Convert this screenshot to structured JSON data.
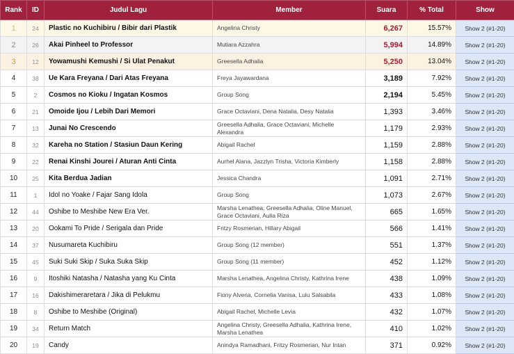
{
  "table": {
    "headers": {
      "rank": "Rank",
      "id": "ID",
      "title": "Judul Lagu",
      "member": "Member",
      "votes": "Suara",
      "pct": "% Total",
      "show": "Show"
    },
    "rows": [
      {
        "rank": "1",
        "id": "24",
        "title": "Plastic no Kuchibiru / Bibir dari Plastik",
        "member": "Angelina Christy",
        "votes": "6,267",
        "pct": "15.57%",
        "show": "Show 2 (#1-20)"
      },
      {
        "rank": "2",
        "id": "26",
        "title": "Akai Pinheel to Professor",
        "member": "Mutiara Azzahra",
        "votes": "5,994",
        "pct": "14.89%",
        "show": "Show 2 (#1-20)"
      },
      {
        "rank": "3",
        "id": "12",
        "title": "Yowamushi Kemushi / Si Ulat Penakut",
        "member": "Greesella Adhalia",
        "votes": "5,250",
        "pct": "13.04%",
        "show": "Show 2 (#1-20)"
      },
      {
        "rank": "4",
        "id": "38",
        "title": "Ue Kara Freyana / Dari Atas Freyana",
        "member": "Freya Jayawardana",
        "votes": "3,189",
        "pct": "7.92%",
        "show": "Show 2 (#1-20)"
      },
      {
        "rank": "5",
        "id": "2",
        "title": "Cosmos no Kioku / Ingatan Kosmos",
        "member": "Group Song",
        "votes": "2,194",
        "pct": "5.45%",
        "show": "Show 2 (#1-20)"
      },
      {
        "rank": "6",
        "id": "21",
        "title": "Omoide Ijou / Lebih Dari Memori",
        "member": "Grace Octaviani, Dena Natalia, Desy Natalia",
        "votes": "1,393",
        "pct": "3.46%",
        "show": "Show 2 (#1-20)"
      },
      {
        "rank": "7",
        "id": "13",
        "title": "Junai No Crescendo",
        "member": "Greesella Adhalia, Grace Octaviani, Michelle Alexandra",
        "votes": "1,179",
        "pct": "2.93%",
        "show": "Show 2 (#1-20)"
      },
      {
        "rank": "8",
        "id": "32",
        "title": "Kareha no Station / Stasiun Daun Kering",
        "member": "Abigail Rachel",
        "votes": "1,159",
        "pct": "2.88%",
        "show": "Show 2 (#1-20)"
      },
      {
        "rank": "9",
        "id": "22",
        "title": "Renai Kinshi Jourei / Aturan Anti Cinta",
        "member": "Aurhel Alana, Jazzlyn Trisha, Victoria Kimberly",
        "votes": "1,158",
        "pct": "2.88%",
        "show": "Show 2 (#1-20)"
      },
      {
        "rank": "10",
        "id": "25",
        "title": "Kita Berdua Jadian",
        "member": "Jessica Chandra",
        "votes": "1,091",
        "pct": "2.71%",
        "show": "Show 2 (#1-20)"
      },
      {
        "rank": "11",
        "id": "1",
        "title": "Idol no Yoake / Fajar Sang Idola",
        "member": "Group Song",
        "votes": "1,073",
        "pct": "2.67%",
        "show": "Show 2 (#1-20)"
      },
      {
        "rank": "12",
        "id": "44",
        "title": "Oshibe to Meshibe New Era Ver.",
        "member": "Marsha Lenathea, Greesella Adhalia, Oline Manuel, Grace Octaviani, Aulia Riza",
        "votes": "665",
        "pct": "1.65%",
        "show": "Show 2 (#1-20)"
      },
      {
        "rank": "13",
        "id": "20",
        "title": "Ookami To Pride / Serigala dan Pride",
        "member": "Fritzy Rosmerian, Hillary Abigail",
        "votes": "566",
        "pct": "1.41%",
        "show": "Show 2 (#1-20)"
      },
      {
        "rank": "14",
        "id": "37",
        "title": "Nusumareta Kuchibiru",
        "member": "Group Song (12 member)",
        "votes": "551",
        "pct": "1.37%",
        "show": "Show 2 (#1-20)"
      },
      {
        "rank": "15",
        "id": "45",
        "title": "Suki Suki Skip / Suka Suka Skip",
        "member": "Group Song (11 member)",
        "votes": "452",
        "pct": "1.12%",
        "show": "Show 2 (#1-20)"
      },
      {
        "rank": "16",
        "id": "9",
        "title": "Itoshiki Natasha / Natasha yang Ku Cinta",
        "member": "Marsha Lenathea, Angelina Christy, Kathrina Irene",
        "votes": "438",
        "pct": "1.09%",
        "show": "Show 2 (#1-20)"
      },
      {
        "rank": "17",
        "id": "16",
        "title": "Dakishimeraretara / Jika di Pelukmu",
        "member": "Fiony Alveria, Cornelia Vanisa, Lulu Salsabila",
        "votes": "433",
        "pct": "1.08%",
        "show": "Show 2 (#1-20)"
      },
      {
        "rank": "18",
        "id": "8",
        "title": "Oshibe to Meshibe (Original)",
        "member": "Abigail Rachel, Michelle Levia",
        "votes": "432",
        "pct": "1.07%",
        "show": "Show 2 (#1-20)"
      },
      {
        "rank": "19",
        "id": "34",
        "title": "Return Match",
        "member": "Angelina Christy, Greesella Adhalia, Kathrina Irene, Marsha Lenathea",
        "votes": "410",
        "pct": "1.02%",
        "show": "Show 2 (#1-20)"
      },
      {
        "rank": "20",
        "id": "19",
        "title": "Candy",
        "member": "Anindya Ramadhani, Fritzy Rosmerian, Nur Intan",
        "votes": "371",
        "pct": "0.92%",
        "show": "Show 2 (#1-20)"
      }
    ]
  },
  "colors": {
    "header_bg": "#a0213b",
    "rank1": "#efbf00",
    "rank2": "#8c8c8c",
    "rank3": "#e8901c",
    "top_votes": "#b3142e",
    "show_bg": "#dde7f7"
  }
}
